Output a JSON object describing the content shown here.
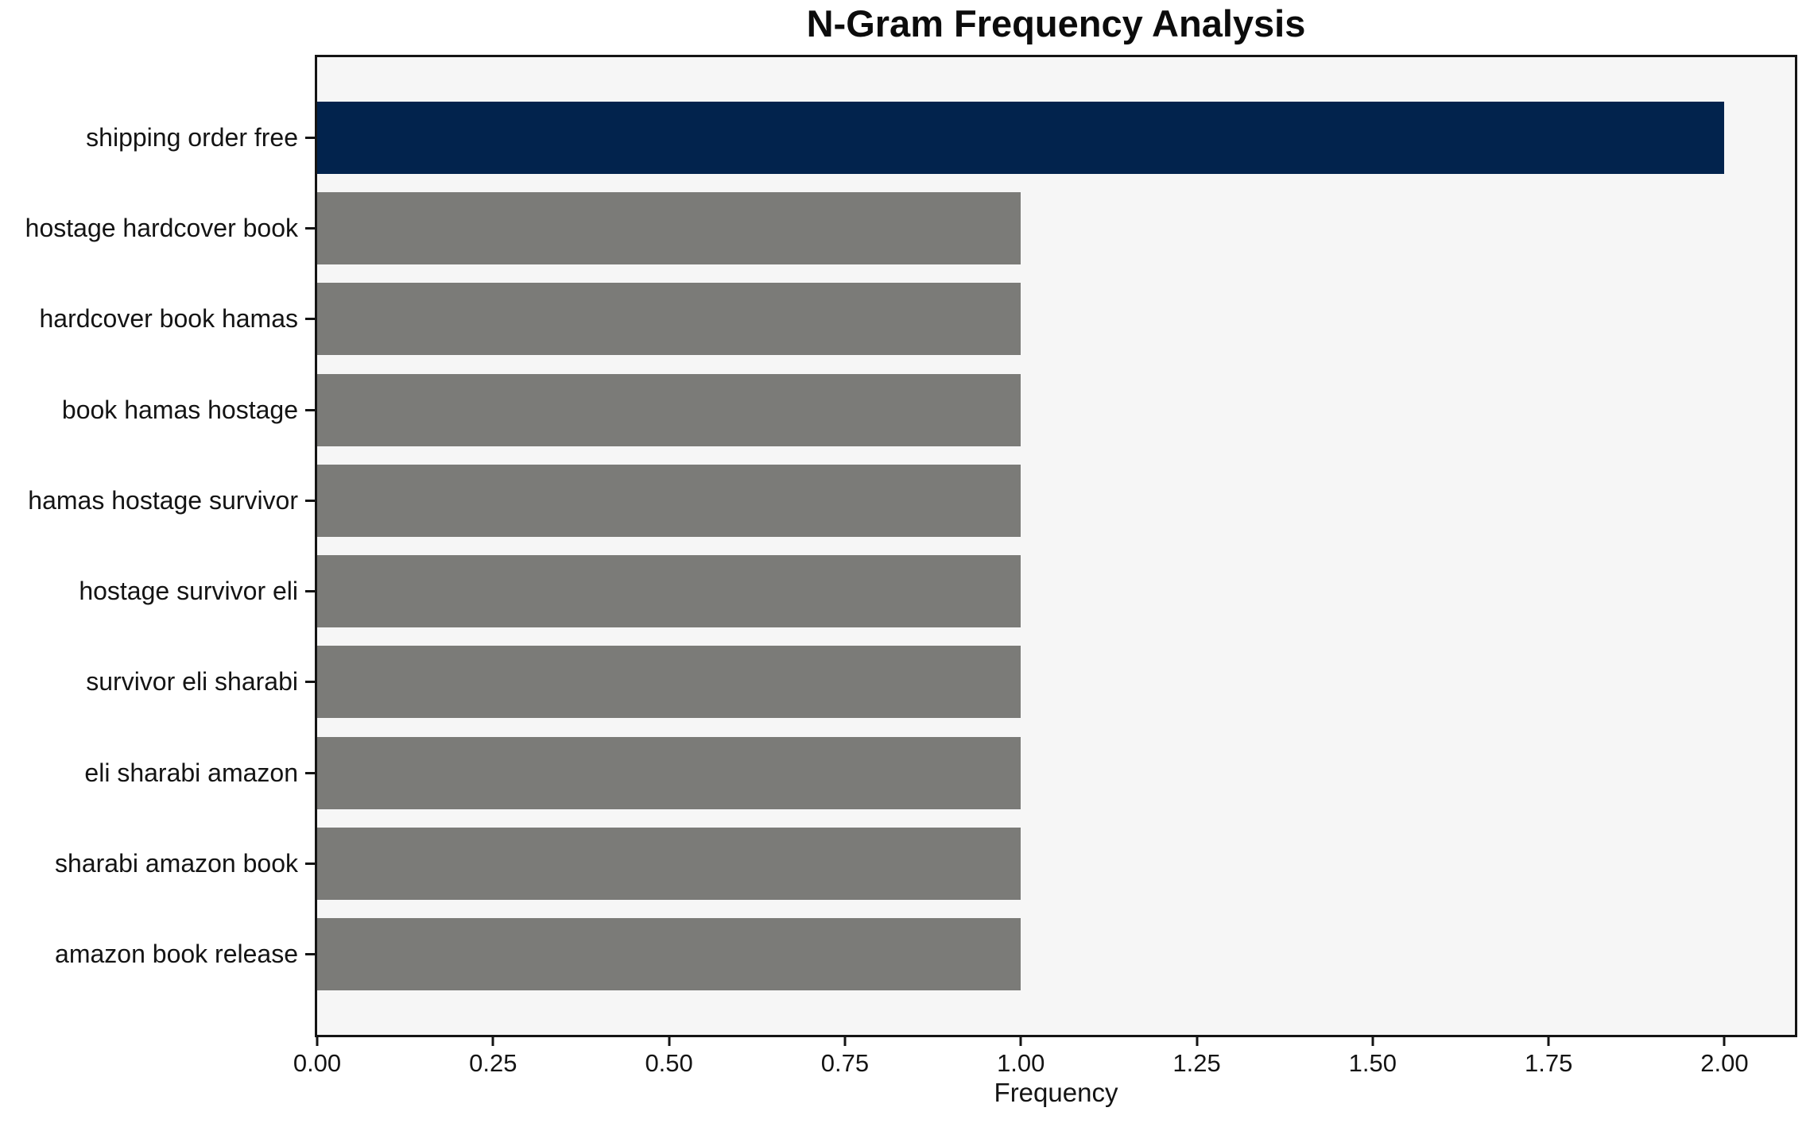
{
  "chart_data": {
    "type": "bar",
    "orientation": "horizontal",
    "title": "N-Gram Frequency Analysis",
    "xlabel": "Frequency",
    "ylabel": "",
    "categories": [
      "shipping order free",
      "hostage hardcover book",
      "hardcover book hamas",
      "book hamas hostage",
      "hamas hostage survivor",
      "hostage survivor eli",
      "survivor eli sharabi",
      "eli sharabi amazon",
      "sharabi amazon book",
      "amazon book release"
    ],
    "values": [
      2.0,
      1.0,
      1.0,
      1.0,
      1.0,
      1.0,
      1.0,
      1.0,
      1.0,
      1.0
    ],
    "bar_colors": [
      "#02234d",
      "#7b7b78",
      "#7b7b78",
      "#7b7b78",
      "#7b7b78",
      "#7b7b78",
      "#7b7b78",
      "#7b7b78",
      "#7b7b78",
      "#7b7b78"
    ],
    "xlim": [
      0,
      2.1
    ],
    "xticks": [
      0,
      0.25,
      0.5,
      0.75,
      1.0,
      1.25,
      1.5,
      1.75,
      2.0
    ],
    "xtick_labels": [
      "0.00",
      "0.25",
      "0.50",
      "0.75",
      "1.00",
      "1.25",
      "1.50",
      "1.75",
      "2.00"
    ],
    "grid": false,
    "legend": null,
    "colors": {
      "highlight_bar": "#02234d",
      "default_bar": "#7b7b78",
      "plot_background": "#f6f6f6",
      "figure_background": "#ffffff",
      "frame": "#141414",
      "text": "#141414"
    }
  }
}
